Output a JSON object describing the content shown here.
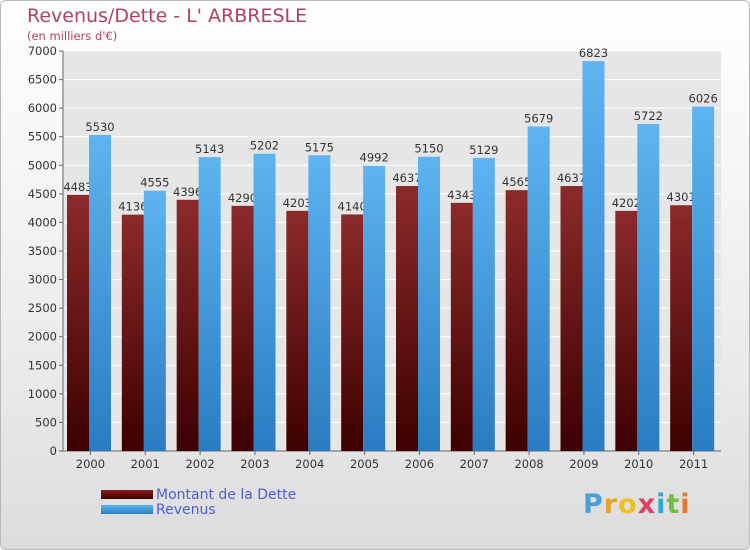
{
  "chart_data": {
    "type": "bar",
    "title": "Revenus/Dette - L' ARBRESLE",
    "subtitle": "(en milliers d'€)",
    "categories": [
      "2000",
      "2001",
      "2002",
      "2003",
      "2004",
      "2005",
      "2006",
      "2007",
      "2008",
      "2009",
      "2010",
      "2011"
    ],
    "series": [
      {
        "name": "Montant de la Dette",
        "color": "#7a1515",
        "values": [
          4483,
          4136,
          4396,
          4290,
          4203,
          4140,
          4637,
          4343,
          4565,
          4637,
          4202,
          4301
        ],
        "labels": [
          "4483",
          "4136",
          "4396",
          "4290",
          "4203",
          "4140",
          "4637",
          "4343",
          "4565",
          "4637",
          "4202",
          "4301"
        ]
      },
      {
        "name": "Revenus",
        "color": "#4aa3e6",
        "values": [
          5530,
          4555,
          5143,
          5202,
          5175,
          4992,
          5150,
          5129,
          5679,
          6823,
          5722,
          6026
        ],
        "labels": [
          "5530",
          "4555",
          "5143",
          "5202",
          "5175",
          "4992",
          "5150",
          "5129",
          "5679",
          "6823",
          "5722",
          "6026"
        ]
      }
    ],
    "ylim": [
      0,
      7000
    ],
    "yticks": [
      "0",
      "500",
      "1000",
      "1500",
      "2000",
      "2500",
      "3000",
      "3500",
      "4000",
      "4500",
      "5000",
      "5500",
      "6000",
      "6500",
      "7000"
    ],
    "grid": true,
    "legend": "bottom-left"
  },
  "logo": {
    "letters": [
      "P",
      "r",
      "o",
      "x",
      "i",
      "t",
      "i"
    ],
    "colors": [
      "#4a9fd8",
      "#e8a030",
      "#f0c020",
      "#e04060",
      "#30a8d0",
      "#70c040",
      "#e87830"
    ]
  }
}
